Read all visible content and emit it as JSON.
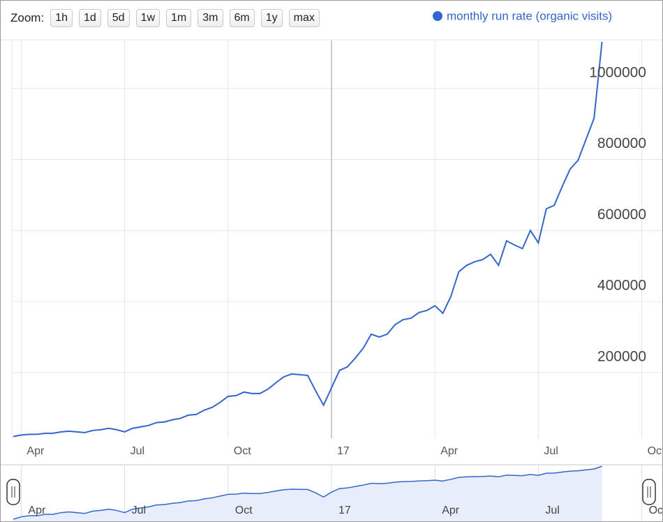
{
  "chart_data": {
    "type": "line",
    "zoom": {
      "label": "Zoom:",
      "buttons": [
        "1h",
        "1d",
        "5d",
        "1w",
        "1m",
        "3m",
        "6m",
        "1y",
        "max"
      ]
    },
    "categories": [
      null,
      "Apr",
      null,
      null,
      null,
      null,
      null,
      null,
      null,
      null,
      null,
      null,
      null,
      null,
      "Jul",
      null,
      null,
      null,
      null,
      null,
      null,
      null,
      null,
      null,
      null,
      null,
      null,
      "Oct",
      null,
      null,
      null,
      null,
      null,
      null,
      null,
      null,
      null,
      null,
      null,
      null,
      "17",
      null,
      null,
      null,
      null,
      null,
      null,
      null,
      null,
      null,
      null,
      null,
      null,
      "Apr",
      null,
      null,
      null,
      null,
      null,
      null,
      null,
      null,
      null,
      null,
      null,
      null,
      "Jul",
      null,
      null,
      null,
      null,
      null,
      null,
      null,
      null,
      null,
      null,
      null,
      null,
      "Oct"
    ],
    "series": [
      {
        "name": "monthly run rate (organic visits)",
        "color": "#3366cc",
        "values": [
          20000,
          24000,
          26000,
          26000,
          29000,
          29000,
          33000,
          35000,
          33000,
          31000,
          37000,
          39000,
          43000,
          39000,
          33000,
          43000,
          47000,
          51000,
          59000,
          61000,
          67000,
          71000,
          80000,
          82000,
          94000,
          102000,
          116000,
          133000,
          135000,
          145000,
          141000,
          141000,
          153000,
          171000,
          188000,
          196000,
          194000,
          192000,
          149000,
          108000,
          157000,
          206000,
          216000,
          241000,
          269000,
          308000,
          300000,
          308000,
          335000,
          349000,
          353000,
          369000,
          375000,
          388000,
          367000,
          414000,
          484000,
          502000,
          512000,
          518000,
          533000,
          502000,
          571000,
          559000,
          549000,
          600000,
          565000,
          661000,
          671000,
          724000,
          773000,
          798000,
          857000,
          916000,
          1131000,
          null,
          null,
          null,
          null,
          null
        ]
      }
    ],
    "ylim": [
      15000,
      1135000
    ],
    "yticks": [
      200000,
      400000,
      600000,
      800000,
      1000000
    ],
    "grid": true,
    "legend": "top-right"
  }
}
